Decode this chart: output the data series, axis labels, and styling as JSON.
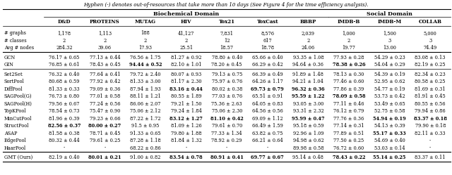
{
  "title_text": "Hyphen (-) denotes out-of-resources that take more than 10 days (See Figure 4 for the time efficiency analysis).",
  "biochemical_domain_label": "Biochemical Domain",
  "social_domain_label": "Social Domain",
  "columns": [
    "D&D",
    "PROTEINS",
    "MUTAG",
    "HIV",
    "Tox21",
    "ToxCast",
    "BBBP",
    "IMDB-B",
    "IMDB-M",
    "COLLAB"
  ],
  "meta_rows": [
    [
      "# graphs",
      "1,178",
      "1,113",
      "188",
      "41,127",
      "7,831",
      "8,576",
      "2,039",
      "1,000",
      "1,500",
      "5,000"
    ],
    [
      "# classes",
      "2",
      "2",
      "2",
      "2",
      "12",
      "617",
      "2",
      "2",
      "3",
      "3"
    ],
    [
      "Avg # nodes",
      "284.32",
      "39.06",
      "17.93",
      "25.51",
      "18.57",
      "18.78",
      "24.06",
      "19.77",
      "13.00",
      "74.49"
    ]
  ],
  "baseline_rows": [
    [
      "GCN",
      "76.17 ± 0.65",
      "77.13 ± 0.44",
      "76.56 ± 1.75",
      "81.27 ± 0.92",
      "78.80 ± 0.40",
      "65.66 ± 0.40",
      "93.35 ± 1.08",
      "77.93 ± 0.28",
      "54.29 ± 0.23",
      "83.08 ± 0.13"
    ],
    [
      "GIN",
      "76.85 ± 0.61",
      "78.43 ± 0.45",
      "94.44 ± 0.52",
      "82.10 ± 1.01",
      "78.20 ± 0.45",
      "66.29 ± 0.42",
      "94.64 ± 0.36",
      "78.38 ± 0.26",
      "54.04 ± 0.29",
      "82.19 ± 0.25"
    ]
  ],
  "baseline_bold": {
    "GIN": [
      "MUTAG",
      "IMDB-B"
    ]
  },
  "pooling_rows": [
    [
      "Set2Set",
      "76.32 ± 0.40",
      "77.64 ± 0.41",
      "79.72 ± 2.40",
      "80.07 ± 0.93",
      "79.13 ± 0.75",
      "66.39 ± 0.49",
      "91.89 ± 1.48",
      "78.13 ± 0.30",
      "54.39 ± 0.19",
      "82.34 ± 0.23"
    ],
    [
      "SortPool",
      "80.68 ± 0.59",
      "77.92 ± 0.42",
      "81.33 ± 3.00",
      "81.17 ± 2.30",
      "75.97 ± 0.76",
      "64.26 ± 1.17",
      "94.21 ± 1.04",
      "77.46 ± 0.60",
      "52.95 ± 0.62",
      "80.58 ± 0.25"
    ],
    [
      "DiffPool",
      "81.33 ± 0.33",
      "79.09 ± 0.36",
      "87.94 ± 1.93",
      "83.16 ± 0.44",
      "80.02 ± 0.38",
      "69.73 ± 0.79",
      "96.32 ± 0.36",
      "77.86 ± 0.39",
      "54.77 ± 0.19",
      "81.69 ± 0.31"
    ],
    [
      "SAGPool(G)",
      "76.73 ± 0.80",
      "77.01 ± 0.58",
      "88.11 ± 1.21",
      "80.55 ± 1.89",
      "77.03 ± 0.76",
      "65.51 ± 0.91",
      "95.59 ± 1.22",
      "78.09 ± 0.58",
      "53.73 ± 0.42",
      "81.91 ± 0.45"
    ],
    [
      "SAGPool(H)",
      "79.56 ± 0.67",
      "77.24 ± 0.56",
      "86.06 ± 2.07",
      "79.21 ± 1.50",
      "75.36 ± 2.63",
      "64.05 ± 0.83",
      "93.05 ± 3.00",
      "77.11 ± 0.46",
      "53.49 ± 0.65",
      "80.55 ± 0.56"
    ],
    [
      "TopKPool",
      "78.54 ± 0.73",
      "75.47 ± 0.90",
      "75.06 ± 2.12",
      "79.24 ± 1.84",
      "75.06 ± 2.30",
      "64.56 ± 0.56",
      "93.31 ± 2.32",
      "76.12 ± 0.79",
      "52.75 ± 0.58",
      "79.94 ± 0.86"
    ],
    [
      "MinCutPool",
      "81.96 ± 0.39",
      "79.23 ± 0.66",
      "87.22 ± 1.72",
      "83.12 ± 1.27",
      "81.10 ± 0.42",
      "69.09 ± 1.12",
      "95.99 ± 0.47",
      "77.76 ± 0.36",
      "54.94 ± 0.19",
      "83.37 ± 0.18"
    ],
    [
      "StructPool",
      "82.56 ± 0.37",
      "80.00 ± 0.27",
      "91.5 ± 0.95",
      "81.09 ± 1.26",
      "79.61 ± 0.70",
      "66.49 ± 1.59",
      "95.18 ± 0.59",
      "77.14 ± 0.31",
      "54.13 ± 0.39",
      "79.90 ± 0.18"
    ],
    [
      "ASAP",
      "81.58 ± 0.38",
      "78.71 ± 0.45",
      "91.33 ± 0.65",
      "79.80 ± 1.88",
      "77.33 ± 1.34",
      "63.82 ± 0.75",
      "92.96 ± 1.09",
      "77.89 ± 0.51",
      "55.17 ± 0.33",
      "82.11 ± 0.33"
    ],
    [
      "EdgePool",
      "80.32 ± 0.44",
      "79.61 ± 0.25",
      "87.28 ± 1.18",
      "81.84 ± 1.32",
      "78.92 ± 0.29",
      "66.21 ± 0.64",
      "94.98 ± 0.62",
      "77.50 ± 0.25",
      "54.69 ± 0.40",
      "-"
    ],
    [
      "HaarPool",
      "-",
      "-",
      "68.22 ± 0.86",
      "-",
      "-",
      "-",
      "89.98 ± 0.58",
      "76.72 ± 0.60",
      "53.03 ± 0.14",
      "-"
    ]
  ],
  "pooling_bold": {
    "DiffPool": [
      "HIV",
      "ToxCast",
      "BBBP"
    ],
    "SAGPool(G)": [
      "BBBP",
      "IMDB-B"
    ],
    "MinCutPool": [
      "HIV",
      "Tox21",
      "BBBP",
      "IMDB-M",
      "COLLAB"
    ],
    "StructPool": [
      "D&D",
      "PROTEINS"
    ],
    "ASAP": [
      "IMDB-M"
    ]
  },
  "ours_row": [
    "GMT (Ours)",
    "82.19 ± 0.40",
    "80.01 ± 0.21",
    "91.00 ± 0.82",
    "83.54 ± 0.78",
    "80.91 ± 0.41",
    "69.77 ± 0.67",
    "95.14 ± 0.48",
    "78.43 ± 0.22",
    "55.14 ± 0.25",
    "83.37 ± 0.11"
  ],
  "ours_bold": [
    "PROTEINS",
    "HIV",
    "Tox21",
    "ToxCast",
    "IMDB-B",
    "IMDB-M"
  ],
  "fig_width": 6.4,
  "fig_height": 2.49,
  "dpi": 100
}
